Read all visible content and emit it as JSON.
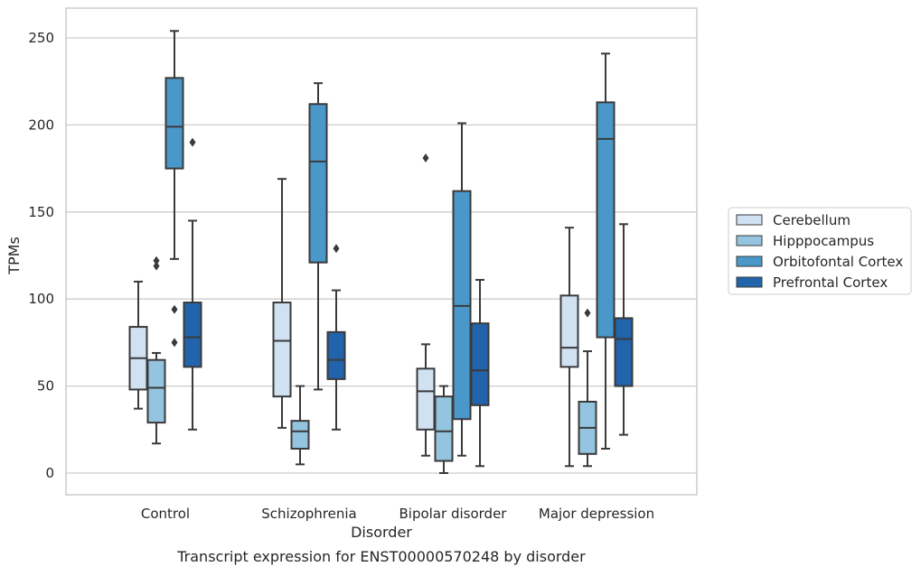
{
  "caption": "Transcript expression for ENST00000570248 by disorder",
  "chart_data": {
    "type": "box",
    "xlabel": "Disorder",
    "ylabel": "TPMs",
    "ylim": [
      -12,
      267
    ],
    "yticks": [
      0,
      50,
      100,
      150,
      200,
      250
    ],
    "grid": true,
    "legend_position": "right",
    "categories": [
      "Control",
      "Schizophrenia",
      "Bipolar disorder",
      "Major depression"
    ],
    "series": [
      {
        "name": "Cerebellum",
        "color": "#d0e1f2",
        "boxes": [
          {
            "whisker_low": 37,
            "q1": 48,
            "median": 66,
            "q3": 84,
            "whisker_high": 110,
            "outliers": []
          },
          {
            "whisker_low": 26,
            "q1": 44,
            "median": 76,
            "q3": 98,
            "whisker_high": 169,
            "outliers": []
          },
          {
            "whisker_low": 10,
            "q1": 25,
            "median": 47,
            "q3": 60,
            "whisker_high": 74,
            "outliers": [
              181
            ]
          },
          {
            "whisker_low": 4,
            "q1": 61,
            "median": 72,
            "q3": 102,
            "whisker_high": 141,
            "outliers": []
          }
        ]
      },
      {
        "name": "Hipppocampus",
        "color": "#94c4df",
        "boxes": [
          {
            "whisker_low": 17,
            "q1": 29,
            "median": 49,
            "q3": 65,
            "whisker_high": 69,
            "outliers": [
              122,
              119
            ]
          },
          {
            "whisker_low": 5,
            "q1": 14,
            "median": 24,
            "q3": 30,
            "whisker_high": 50,
            "outliers": []
          },
          {
            "whisker_low": 0,
            "q1": 7,
            "median": 24,
            "q3": 44,
            "whisker_high": 50,
            "outliers": []
          },
          {
            "whisker_low": 4,
            "q1": 11,
            "median": 26,
            "q3": 41,
            "whisker_high": 70,
            "outliers": [
              92
            ]
          }
        ]
      },
      {
        "name": "Orbitofontal Cortex",
        "color": "#4a98c9",
        "boxes": [
          {
            "whisker_low": 123,
            "q1": 175,
            "median": 199,
            "q3": 227,
            "whisker_high": 254,
            "outliers": [
              94,
              75
            ]
          },
          {
            "whisker_low": 48,
            "q1": 121,
            "median": 179,
            "q3": 212,
            "whisker_high": 224,
            "outliers": []
          },
          {
            "whisker_low": 10,
            "q1": 31,
            "median": 96,
            "q3": 162,
            "whisker_high": 201,
            "outliers": []
          },
          {
            "whisker_low": 14,
            "q1": 78,
            "median": 192,
            "q3": 213,
            "whisker_high": 241,
            "outliers": []
          }
        ]
      },
      {
        "name": "Prefrontal Cortex",
        "color": "#2164ab",
        "boxes": [
          {
            "whisker_low": 25,
            "q1": 61,
            "median": 78,
            "q3": 98,
            "whisker_high": 145,
            "outliers": [
              190
            ]
          },
          {
            "whisker_low": 25,
            "q1": 54,
            "median": 65,
            "q3": 81,
            "whisker_high": 105,
            "outliers": [
              129
            ]
          },
          {
            "whisker_low": 4,
            "q1": 39,
            "median": 59,
            "q3": 86,
            "whisker_high": 111,
            "outliers": []
          },
          {
            "whisker_low": 22,
            "q1": 50,
            "median": 77,
            "q3": 89,
            "whisker_high": 143,
            "outliers": []
          }
        ]
      }
    ]
  }
}
